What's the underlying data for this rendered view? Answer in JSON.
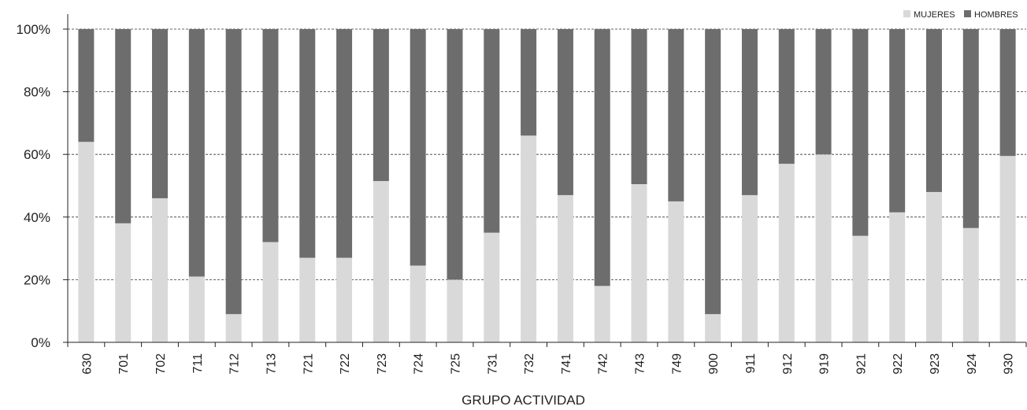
{
  "chart_data": {
    "type": "bar",
    "stacked": true,
    "percent": true,
    "xlabel": "GRUPO ACTIVIDAD",
    "ylabel": "",
    "ylim": [
      0,
      100
    ],
    "yticks": [
      "0%",
      "20%",
      "40%",
      "60%",
      "80%",
      "100%"
    ],
    "grid": "horizontal dashed",
    "legend_position": "top-right",
    "categories": [
      "630",
      "701",
      "702",
      "711",
      "712",
      "713",
      "721",
      "722",
      "723",
      "724",
      "725",
      "731",
      "732",
      "741",
      "742",
      "743",
      "749",
      "900",
      "911",
      "912",
      "919",
      "921",
      "922",
      "923",
      "924",
      "930"
    ],
    "series": [
      {
        "name": "MUJERES",
        "color": "#d9d9d9",
        "values": [
          64,
          38,
          46,
          21,
          9,
          32,
          27,
          27,
          51.5,
          24.5,
          20,
          35,
          66,
          47,
          18,
          50.5,
          45,
          9,
          47,
          57,
          60,
          34,
          41.5,
          48,
          36.5,
          59.5
        ]
      },
      {
        "name": "HOMBRES",
        "color": "#6d6d6d",
        "values": [
          36,
          62,
          54,
          79,
          91,
          68,
          73,
          73,
          48.5,
          75.5,
          80,
          65,
          34,
          53,
          82,
          49.5,
          55,
          91,
          53,
          43,
          40,
          66,
          58.5,
          52,
          63.5,
          40.5
        ]
      }
    ]
  }
}
